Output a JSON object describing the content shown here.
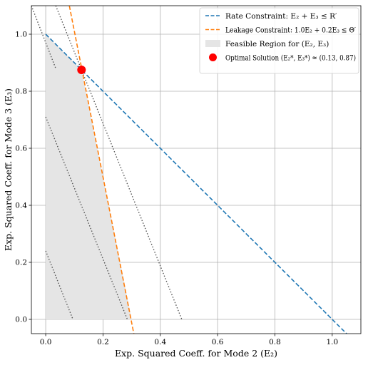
{
  "chart_data": {
    "type": "line",
    "xlabel": "Exp. Squared Coeff. for Mode 2 (E₂)",
    "ylabel": "Exp. Squared Coeff. for Mode 3 (E₃)",
    "xlim": [
      -0.05,
      1.1
    ],
    "ylim": [
      -0.05,
      1.1
    ],
    "x_ticks": [
      0.0,
      0.2,
      0.4,
      0.6,
      0.8,
      1.0
    ],
    "y_ticks": [
      0.0,
      0.2,
      0.4,
      0.6,
      0.8,
      1.0
    ],
    "grid": true,
    "legend_position": "top-right",
    "colors": {
      "rate": "#1f77b4",
      "leakage": "#ff7f0e",
      "feasible": "#e5e5e5",
      "optimal": "#ff0000",
      "contour": "#555555"
    },
    "series": [
      {
        "name": "Rate Constraint: E₂ + E₃ ≤ R′",
        "style": "dashed",
        "x": [
          0.0,
          1.1
        ],
        "y": [
          1.0,
          -0.1
        ]
      },
      {
        "name": "Leakage Constraint: 1.0E₂ + 0.2E₃ ≤ Θ′",
        "style": "dashed",
        "x": [
          0.0825,
          0.3075
        ],
        "y": [
          1.1,
          -0.05
        ]
      }
    ],
    "feasible_region": {
      "name": "Feasible Region for (E₂, E₃)",
      "polygon": [
        [
          0.0,
          0.0
        ],
        [
          0.3,
          0.0
        ],
        [
          0.125,
          0.875
        ],
        [
          0.0,
          1.0
        ]
      ]
    },
    "optimal_point": {
      "name": "Optimal Solution (E₂*, E₃*) ≈ (0.13, 0.87)",
      "x": 0.125,
      "y": 0.875
    },
    "contour_lines": [
      {
        "x": [
          0.0,
          0.095
        ],
        "y": [
          0.24,
          0.0
        ]
      },
      {
        "x": [
          0.0,
          0.285
        ],
        "y": [
          0.71,
          0.0
        ]
      },
      {
        "x": [
          0.035,
          0.475
        ],
        "y": [
          1.1,
          0.0
        ]
      },
      {
        "x": [
          -0.05,
          0.035
        ],
        "y": [
          1.1,
          0.88
        ]
      }
    ]
  }
}
